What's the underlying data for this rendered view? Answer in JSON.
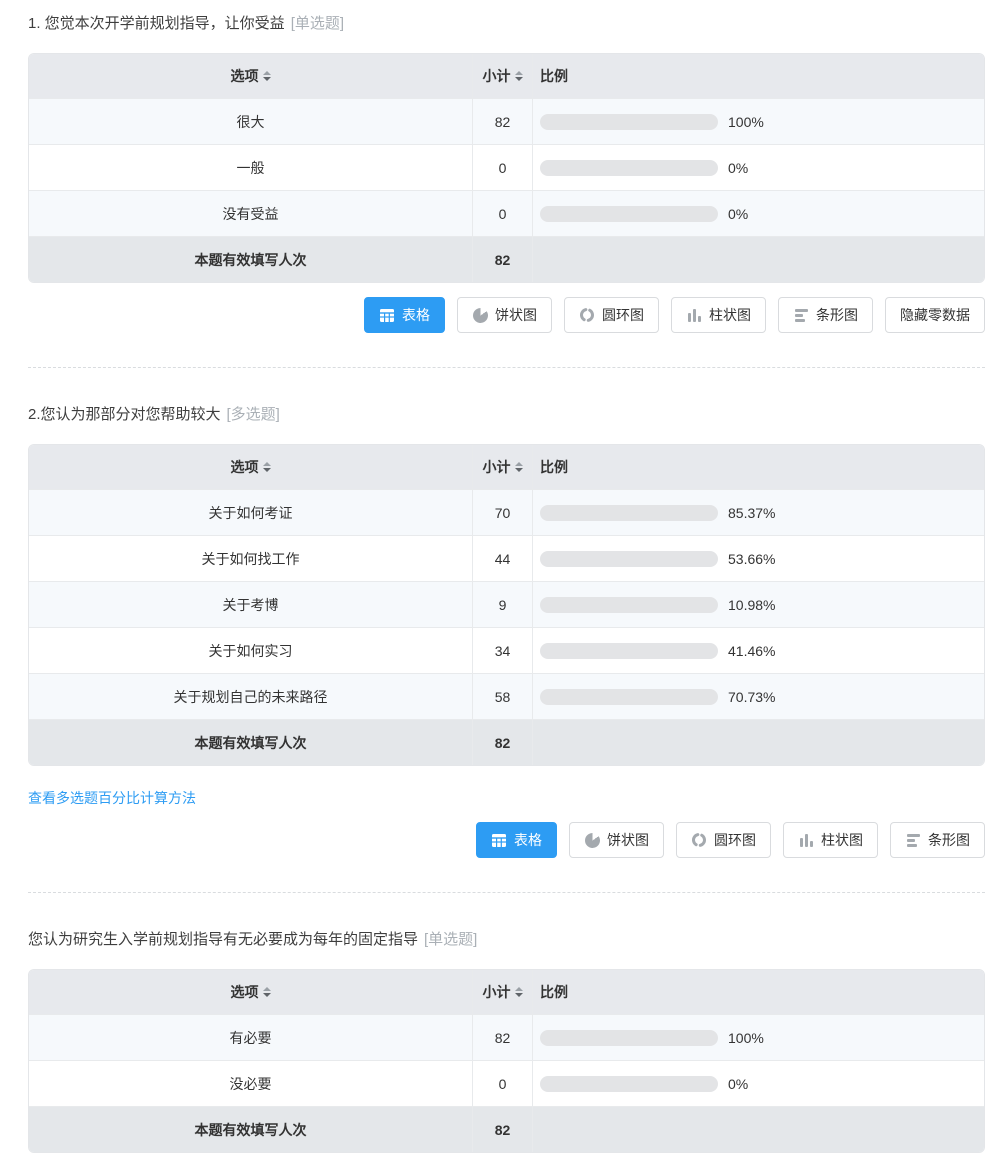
{
  "colors": {
    "accent": "#2d9cf3",
    "track_gray": "#e3e4e6",
    "header_bg": "#e7e9ed",
    "footer_bg": "#e4e7ea",
    "stripe_bg": "#f6f9fc"
  },
  "table_header": {
    "option": "选项",
    "count": "小计",
    "ratio": "比例"
  },
  "chart_buttons": {
    "table": "表格",
    "pie": "饼状图",
    "donut": "圆环图",
    "column": "柱状图",
    "bar": "条形图",
    "hide_zero": "隐藏零数据"
  },
  "multi_link": "查看多选题百分比计算方法",
  "questions": [
    {
      "title": "1. 您觉本次开学前规划指导，让你受益",
      "tag": "[单选题]",
      "rows": [
        {
          "label": "很大",
          "count": "82",
          "pct": 100,
          "pct_label": "100%"
        },
        {
          "label": "一般",
          "count": "0",
          "pct": 0,
          "pct_label": "0%"
        },
        {
          "label": "没有受益",
          "count": "0",
          "pct": 0,
          "pct_label": "0%"
        }
      ],
      "footer_label": "本题有效填写人次",
      "footer_count": "82"
    },
    {
      "title": "2.您认为那部分对您帮助较大",
      "tag": "[多选题]",
      "rows": [
        {
          "label": "关于如何考证",
          "count": "70",
          "pct": 85.37,
          "pct_label": "85.37%"
        },
        {
          "label": "关于如何找工作",
          "count": "44",
          "pct": 53.66,
          "pct_label": "53.66%"
        },
        {
          "label": "关于考博",
          "count": "9",
          "pct": 10.98,
          "pct_label": "10.98%"
        },
        {
          "label": "关于如何实习",
          "count": "34",
          "pct": 41.46,
          "pct_label": "41.46%"
        },
        {
          "label": "关于规划自己的未来路径",
          "count": "58",
          "pct": 70.73,
          "pct_label": "70.73%"
        }
      ],
      "footer_label": "本题有效填写人次",
      "footer_count": "82"
    },
    {
      "title": "您认为研究生入学前规划指导有无必要成为每年的固定指导",
      "tag": "[单选题]",
      "rows": [
        {
          "label": "有必要",
          "count": "82",
          "pct": 100,
          "pct_label": "100%"
        },
        {
          "label": "没必要",
          "count": "0",
          "pct": 0,
          "pct_label": "0%"
        }
      ],
      "footer_label": "本题有效填写人次",
      "footer_count": "82"
    }
  ]
}
